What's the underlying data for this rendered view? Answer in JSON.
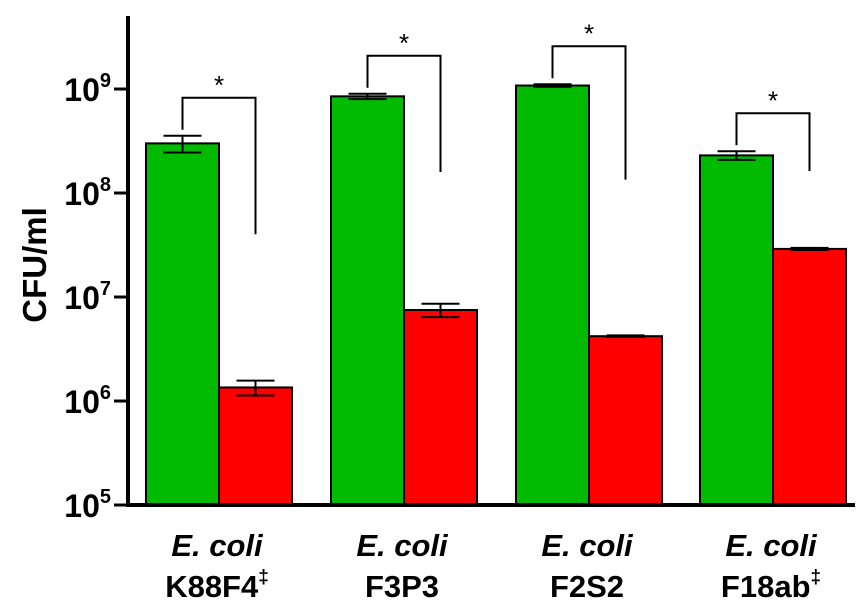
{
  "chart_data": {
    "type": "bar",
    "ylabel": "CFU/ml",
    "xlabel": "",
    "yscale": "log",
    "ylim": [
      100000,
      6000000000
    ],
    "y_ticks": [
      {
        "base": "10",
        "exp": "5",
        "value": 100000
      },
      {
        "base": "10",
        "exp": "6",
        "value": 1000000
      },
      {
        "base": "10",
        "exp": "7",
        "value": 10000000
      },
      {
        "base": "10",
        "exp": "8",
        "value": 100000000
      },
      {
        "base": "10",
        "exp": "9",
        "value": 1000000000
      }
    ],
    "categories": [
      {
        "line1": "E. coli",
        "line2": "K88F4",
        "sup": "‡"
      },
      {
        "line1": "E. coli",
        "line2": "F3P3",
        "sup": ""
      },
      {
        "line1": "E. coli",
        "line2": "F2S2",
        "sup": ""
      },
      {
        "line1": "E. coli",
        "line2": "F18ab",
        "sup": "‡"
      }
    ],
    "series": [
      {
        "color": "#00bb00",
        "values": [
          300000000,
          850000000,
          1080000000,
          230000000
        ],
        "errors": [
          55000000,
          50000000,
          30000000,
          22000000
        ]
      },
      {
        "color": "#ff0000",
        "values": [
          1350000,
          7500000,
          4200000,
          29000000
        ],
        "errors": [
          220000,
          1100000,
          80000,
          700000
        ]
      }
    ],
    "significance": [
      {
        "category": 0,
        "label": "*"
      },
      {
        "category": 1,
        "label": "*"
      },
      {
        "category": 2,
        "label": "*"
      },
      {
        "category": 3,
        "label": "*"
      }
    ],
    "grid": false,
    "legend": "none"
  }
}
